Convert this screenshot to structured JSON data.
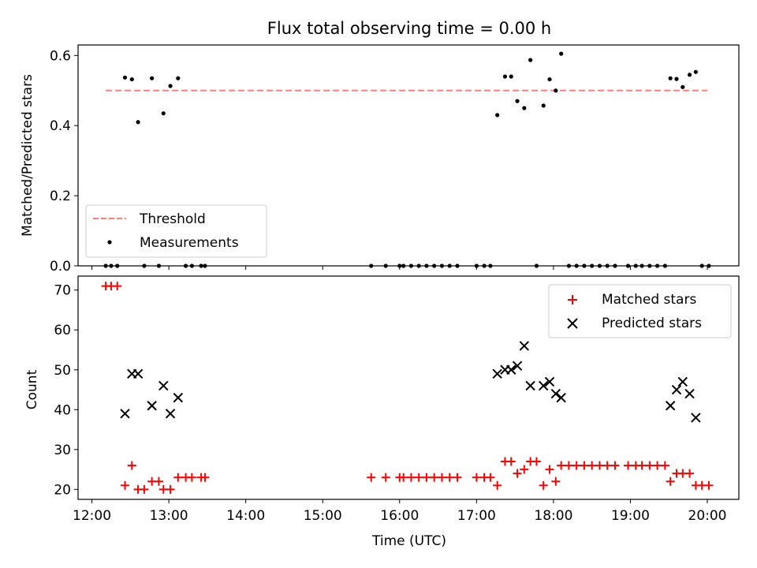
{
  "title": "Flux total observing time = 0.00 h",
  "xlabel": "Time (UTC)",
  "colors": {
    "threshold": "#ff7f7f",
    "measurement": "#000000",
    "matched": "#ff0000",
    "predicted": "#000000"
  },
  "chart_data": [
    {
      "type": "scatter",
      "panel": "top",
      "ylabel": "Matched/Predicted stars",
      "xlim": [
        11.82,
        20.41
      ],
      "ylim": [
        0.0,
        0.63
      ],
      "yticks": [
        0.0,
        0.2,
        0.4,
        0.6
      ],
      "ytick_labels": [
        "0.0",
        "0.2",
        "0.4",
        "0.6"
      ],
      "legend_position": "lower-left",
      "threshold": {
        "name": "Threshold",
        "y": 0.5,
        "x_range": [
          12.18,
          20.0
        ],
        "style": "dashed"
      },
      "series": [
        {
          "name": "Measurements",
          "x": [
            12.18,
            12.25,
            12.33,
            12.43,
            12.52,
            12.6,
            12.68,
            12.78,
            12.87,
            12.93,
            13.02,
            13.12,
            13.22,
            13.3,
            13.42,
            13.47,
            15.63,
            15.82,
            16.0,
            16.05,
            16.15,
            16.25,
            16.35,
            16.45,
            16.55,
            16.65,
            16.75,
            17.0,
            17.1,
            17.18,
            17.27,
            17.37,
            17.45,
            17.53,
            17.62,
            17.7,
            17.78,
            17.87,
            17.95,
            18.03,
            18.1,
            18.2,
            18.3,
            18.4,
            18.5,
            18.6,
            18.7,
            18.8,
            18.97,
            19.07,
            19.15,
            19.25,
            19.35,
            19.45,
            19.52,
            19.6,
            19.68,
            19.77,
            19.85,
            19.93,
            20.02
          ],
          "y": [
            0,
            0,
            0,
            0.537,
            0.532,
            0.41,
            0,
            0.535,
            0,
            0.435,
            0.513,
            0.535,
            0,
            0,
            0,
            0,
            0,
            0,
            0,
            0,
            0,
            0,
            0,
            0,
            0,
            0,
            0,
            0,
            0,
            0,
            0.43,
            0.54,
            0.54,
            0.47,
            0.45,
            0.587,
            0,
            0.457,
            0.532,
            0.5,
            0.605,
            0,
            0,
            0,
            0,
            0,
            0,
            0,
            0,
            0,
            0,
            0,
            0,
            0,
            0.535,
            0.533,
            0.51,
            0.545,
            0.553,
            0,
            0
          ]
        }
      ]
    },
    {
      "type": "scatter",
      "panel": "bottom",
      "ylabel": "Count",
      "xlim": [
        11.82,
        20.41
      ],
      "ylim": [
        17.5,
        73.5
      ],
      "yticks": [
        20,
        30,
        40,
        50,
        60,
        70
      ],
      "ytick_labels": [
        "20",
        "30",
        "40",
        "50",
        "60",
        "70"
      ],
      "xticks": [
        12,
        13,
        14,
        15,
        16,
        17,
        18,
        19,
        20
      ],
      "xtick_labels": [
        "12:00",
        "13:00",
        "14:00",
        "15:00",
        "16:00",
        "17:00",
        "18:00",
        "19:00",
        "20:00"
      ],
      "legend_position": "upper-right",
      "series": [
        {
          "name": "Matched stars",
          "marker": "+",
          "x": [
            12.18,
            12.25,
            12.33,
            12.43,
            12.52,
            12.6,
            12.68,
            12.78,
            12.87,
            12.93,
            13.02,
            13.12,
            13.22,
            13.3,
            13.42,
            13.47,
            15.63,
            15.82,
            16.0,
            16.05,
            16.15,
            16.25,
            16.35,
            16.45,
            16.55,
            16.65,
            16.75,
            17.0,
            17.1,
            17.18,
            17.27,
            17.37,
            17.45,
            17.53,
            17.62,
            17.7,
            17.78,
            17.87,
            17.95,
            18.03,
            18.1,
            18.2,
            18.3,
            18.4,
            18.5,
            18.6,
            18.7,
            18.8,
            18.97,
            19.07,
            19.15,
            19.25,
            19.35,
            19.45,
            19.52,
            19.6,
            19.68,
            19.77,
            19.85,
            19.93,
            20.02
          ],
          "y": [
            71,
            71,
            71,
            21,
            26,
            20,
            20,
            22,
            22,
            20,
            20,
            23,
            23,
            23,
            23,
            23,
            23,
            23,
            23,
            23,
            23,
            23,
            23,
            23,
            23,
            23,
            23,
            23,
            23,
            23,
            21,
            27,
            27,
            24,
            25,
            27,
            27,
            21,
            25,
            22,
            26,
            26,
            26,
            26,
            26,
            26,
            26,
            26,
            26,
            26,
            26,
            26,
            26,
            26,
            22,
            24,
            24,
            24,
            21,
            21,
            21
          ]
        },
        {
          "name": "Predicted stars",
          "marker": "x",
          "x": [
            12.43,
            12.52,
            12.6,
            12.78,
            12.93,
            13.02,
            13.12,
            17.27,
            17.37,
            17.45,
            17.53,
            17.62,
            17.7,
            17.87,
            17.95,
            18.03,
            18.1,
            19.52,
            19.6,
            19.68,
            19.77,
            19.85
          ],
          "y": [
            39,
            49,
            49,
            41,
            46,
            39,
            43,
            49,
            50,
            50,
            51,
            56,
            46,
            46,
            47,
            44,
            43,
            41,
            45,
            47,
            44,
            38
          ]
        }
      ]
    }
  ]
}
